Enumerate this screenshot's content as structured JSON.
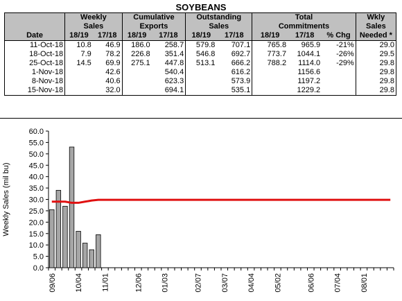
{
  "title": "SOYBEANS",
  "table": {
    "group_headers": {
      "weekly": [
        "Weekly",
        "Sales"
      ],
      "cumulative": [
        "Cumulative",
        "Exports"
      ],
      "outstanding": [
        "Outstanding",
        "Sales"
      ],
      "total": [
        "Total",
        "Commitments"
      ],
      "needed": [
        "Wkly",
        "Sales",
        "Needed *"
      ]
    },
    "sub_headers": [
      "Date",
      "18/19",
      "17/18",
      "18/19",
      "17/18",
      "18/19",
      "17/18",
      "18/19",
      "17/18",
      "% Chg"
    ],
    "rows": [
      [
        "11-Oct-18",
        "10.8",
        "46.9",
        "186.0",
        "258.7",
        "579.8",
        "707.1",
        "765.8",
        "965.9",
        "-21%",
        "29.0"
      ],
      [
        "18-Oct-18",
        "7.9",
        "78.2",
        "226.8",
        "351.4",
        "546.8",
        "692.7",
        "773.7",
        "1044.1",
        "-26%",
        "29.5"
      ],
      [
        "25-Oct-18",
        "14.5",
        "69.9",
        "275.1",
        "447.8",
        "513.1",
        "666.2",
        "788.2",
        "1114.0",
        "-29%",
        "29.8"
      ],
      [
        "1-Nov-18",
        "",
        "42.6",
        "",
        "540.4",
        "",
        "616.2",
        "",
        "1156.6",
        "",
        "29.8"
      ],
      [
        "8-Nov-18",
        "",
        "40.6",
        "",
        "623.3",
        "",
        "573.9",
        "",
        "1197.2",
        "",
        "29.8"
      ],
      [
        "15-Nov-18",
        "",
        "32.0",
        "",
        "694.1",
        "",
        "535.1",
        "",
        "1229.2",
        "",
        "29.8"
      ]
    ]
  },
  "chart_data": {
    "type": "bar",
    "ylabel": "Weekly Sales (mil bu)",
    "ylim": [
      0,
      60
    ],
    "yticks": [
      "0.0",
      "5.0",
      "10.0",
      "15.0",
      "20.0",
      "25.0",
      "30.0",
      "35.0",
      "40.0",
      "45.0",
      "50.0",
      "55.0",
      "60.0"
    ],
    "xtick_labels": [
      "09/06",
      "10/04",
      "11/01",
      "12/06",
      "01/03",
      "02/07",
      "03/07",
      "04/04",
      "05/02",
      "06/06",
      "07/04",
      "08/01"
    ],
    "xtick_positions": [
      0,
      4,
      8,
      13,
      17,
      22,
      26,
      30,
      34,
      39,
      43,
      47
    ],
    "total_weeks": 52,
    "bar_color": "#a6a6a6",
    "line_color": "#e01010",
    "series": [
      {
        "kind": "bar",
        "values": [
          25.5,
          34.0,
          27.0,
          53.0,
          16.0,
          10.8,
          7.9,
          14.5
        ]
      },
      {
        "kind": "line",
        "values": [
          29.0,
          29.0,
          29.0,
          28.5,
          28.5,
          29.0,
          29.5,
          29.8,
          29.8,
          29.8,
          29.8,
          29.8,
          29.8,
          29.8,
          29.8,
          29.8,
          29.8,
          29.8,
          29.8,
          29.8,
          29.8,
          29.8,
          29.8,
          29.8,
          29.8,
          29.8,
          29.8,
          29.8,
          29.8,
          29.8,
          29.8,
          29.8,
          29.8,
          29.8,
          29.8,
          29.8,
          29.8,
          29.8,
          29.8,
          29.8,
          29.8,
          29.8,
          29.8,
          29.8,
          29.8,
          29.8,
          29.8,
          29.8,
          29.8,
          29.8,
          29.8,
          29.8
        ]
      }
    ]
  }
}
